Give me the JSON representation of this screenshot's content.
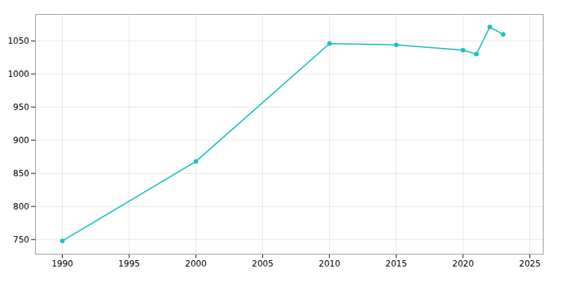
{
  "chart_data": {
    "type": "line",
    "x": [
      1990,
      2000,
      2010,
      2015,
      2020,
      2021,
      2022,
      2023
    ],
    "values": [
      748,
      868,
      1046,
      1044,
      1036,
      1030,
      1071,
      1060
    ],
    "color": "#20c0c0",
    "marker": "circle",
    "xlim": [
      1988,
      2026
    ],
    "xticks": [
      1990,
      1995,
      2000,
      2005,
      2010,
      2015,
      2020,
      2025
    ],
    "ylim": [
      728,
      1090
    ],
    "yticks": [
      750,
      800,
      850,
      900,
      950,
      1000,
      1050
    ],
    "grid": true
  }
}
